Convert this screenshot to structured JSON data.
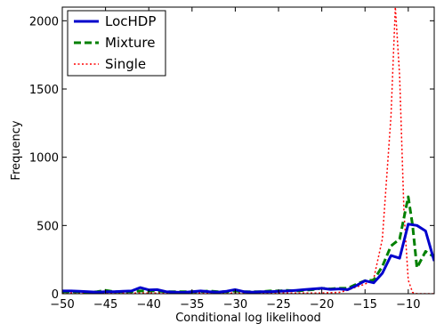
{
  "chart_data": {
    "type": "line",
    "title": "",
    "xlabel": "Conditional log likelihood",
    "ylabel": "Frequency",
    "xlim": [
      -50,
      -7
    ],
    "ylim": [
      0,
      2100
    ],
    "x_ticks": [
      -50,
      -45,
      -40,
      -35,
      -30,
      -25,
      -20,
      -15,
      -10
    ],
    "y_ticks": [
      0,
      500,
      1000,
      1500,
      2000
    ],
    "grid": false,
    "legend_position": "top-left",
    "series": [
      {
        "name": "LocHDP",
        "color": "#0000cc",
        "style": "solid",
        "x": [
          -50,
          -49,
          -48,
          -47,
          -46,
          -45,
          -44,
          -43,
          -42,
          -41,
          -40,
          -39,
          -38,
          -37,
          -36,
          -35,
          -34,
          -33,
          -32,
          -31,
          -30,
          -29,
          -28,
          -27,
          -26,
          -25,
          -24,
          -23,
          -22,
          -21,
          -20,
          -19,
          -18,
          -17,
          -16,
          -15,
          -14,
          -13,
          -12,
          -11,
          -10,
          -9,
          -8,
          -7
        ],
        "y": [
          20,
          20,
          18,
          15,
          12,
          15,
          15,
          18,
          20,
          45,
          28,
          30,
          15,
          12,
          10,
          15,
          20,
          15,
          12,
          18,
          30,
          15,
          12,
          15,
          15,
          18,
          20,
          25,
          30,
          35,
          40,
          32,
          35,
          30,
          60,
          95,
          80,
          150,
          280,
          260,
          510,
          500,
          460,
          240
        ]
      },
      {
        "name": "Mixture",
        "color": "#008000",
        "style": "dashed",
        "x": [
          -50,
          -49,
          -48,
          -47,
          -46,
          -45,
          -44,
          -43,
          -42,
          -41,
          -40,
          -39,
          -38,
          -37,
          -36,
          -35,
          -34,
          -33,
          -32,
          -31,
          -30,
          -29,
          -28,
          -27,
          -26,
          -25,
          -24,
          -23,
          -22,
          -21,
          -20,
          -19,
          -18,
          -17,
          -16,
          -15,
          -14,
          -13,
          -12,
          -11,
          -10,
          -9.5,
          -9,
          -8,
          -7
        ],
        "y": [
          15,
          15,
          15,
          10,
          15,
          25,
          15,
          15,
          15,
          20,
          20,
          20,
          15,
          15,
          15,
          15,
          15,
          20,
          15,
          15,
          20,
          15,
          15,
          15,
          20,
          20,
          25,
          20,
          25,
          30,
          40,
          35,
          40,
          40,
          70,
          95,
          100,
          200,
          350,
          400,
          710,
          500,
          190,
          310,
          270
        ]
      },
      {
        "name": "Single",
        "color": "#ff0000",
        "style": "dotted",
        "x": [
          -50,
          -45,
          -40,
          -35,
          -30,
          -25,
          -20,
          -18,
          -17,
          -16,
          -15,
          -14,
          -13,
          -12,
          -11.5,
          -11,
          -10.5,
          -10,
          -9.5,
          -9,
          -8,
          -7
        ],
        "y": [
          5,
          5,
          5,
          5,
          5,
          5,
          5,
          10,
          25,
          50,
          70,
          110,
          400,
          1300,
          2100,
          1600,
          600,
          100,
          10,
          0,
          0,
          0
        ]
      }
    ]
  }
}
